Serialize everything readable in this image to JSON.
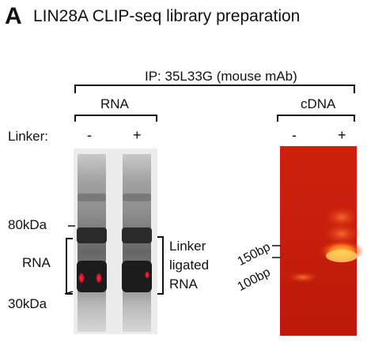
{
  "panel": {
    "letter": "A",
    "title": "LIN28A CLIP-seq library preparation"
  },
  "header": {
    "ip": "IP: 35L33G (mouse mAb)",
    "rna": "RNA",
    "cdna": "cDNA"
  },
  "linker": {
    "label": "Linker:",
    "rna_lanes": [
      "-",
      "+"
    ],
    "cdna_lanes": [
      "-",
      "+"
    ]
  },
  "markers_left": {
    "upper": "80kDa",
    "lower": "30kDa",
    "bracket_label": "RNA"
  },
  "right_label": "Linker ligated RNA",
  "markers_cdna": {
    "upper": "150bp",
    "lower": "100bp"
  },
  "colors": {
    "gel_rna_bg": "#e6e6e6",
    "gel_band_dark": "#2a2a2a",
    "gel_band_red": "#e8102a",
    "gel_cdna_bg": "#c81e0c",
    "gel_cdna_band": "#ffb020"
  }
}
